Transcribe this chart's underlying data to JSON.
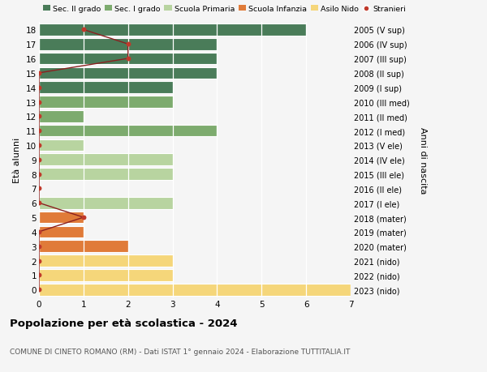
{
  "ages": [
    18,
    17,
    16,
    15,
    14,
    13,
    12,
    11,
    10,
    9,
    8,
    7,
    6,
    5,
    4,
    3,
    2,
    1,
    0
  ],
  "right_labels": [
    "2005 (V sup)",
    "2006 (IV sup)",
    "2007 (III sup)",
    "2008 (II sup)",
    "2009 (I sup)",
    "2010 (III med)",
    "2011 (II med)",
    "2012 (I med)",
    "2013 (V ele)",
    "2014 (IV ele)",
    "2015 (III ele)",
    "2016 (II ele)",
    "2017 (I ele)",
    "2018 (mater)",
    "2019 (mater)",
    "2020 (mater)",
    "2021 (nido)",
    "2022 (nido)",
    "2023 (nido)"
  ],
  "bar_values": [
    6,
    4,
    4,
    4,
    3,
    3,
    1,
    4,
    1,
    3,
    3,
    0,
    3,
    1,
    1,
    2,
    3,
    3,
    7
  ],
  "bar_colors": [
    "#4a7c59",
    "#4a7c59",
    "#4a7c59",
    "#4a7c59",
    "#4a7c59",
    "#7dab6e",
    "#7dab6e",
    "#7dab6e",
    "#b8d4a0",
    "#b8d4a0",
    "#b8d4a0",
    "#b8d4a0",
    "#b8d4a0",
    "#e07b39",
    "#e07b39",
    "#e07b39",
    "#f5d67a",
    "#f5d67a",
    "#f5d67a"
  ],
  "stranieri_values": [
    1,
    2,
    2,
    0,
    0,
    0,
    0,
    0,
    0,
    0,
    0,
    0,
    0,
    1,
    0,
    0,
    0,
    0,
    0
  ],
  "xlim": [
    0,
    7
  ],
  "xticks": [
    0,
    1,
    2,
    3,
    4,
    5,
    6,
    7
  ],
  "legend_labels": [
    "Sec. II grado",
    "Sec. I grado",
    "Scuola Primaria",
    "Scuola Infanzia",
    "Asilo Nido",
    "Stranieri"
  ],
  "legend_colors": [
    "#4a7c59",
    "#7dab6e",
    "#b8d4a0",
    "#e07b39",
    "#f5d67a",
    "#c0392b"
  ],
  "ylabel_left": "Età alunni",
  "ylabel_right": "Anni di nascita",
  "title": "Popolazione per età scolastica - 2024",
  "subtitle": "COMUNE DI CINETO ROMANO (RM) - Dati ISTAT 1° gennaio 2024 - Elaborazione TUTTITALIA.IT",
  "bg_color": "#f5f5f5",
  "bar_height": 0.82,
  "stranieri_color": "#c0392b",
  "stranieri_line_color": "#8b2020"
}
